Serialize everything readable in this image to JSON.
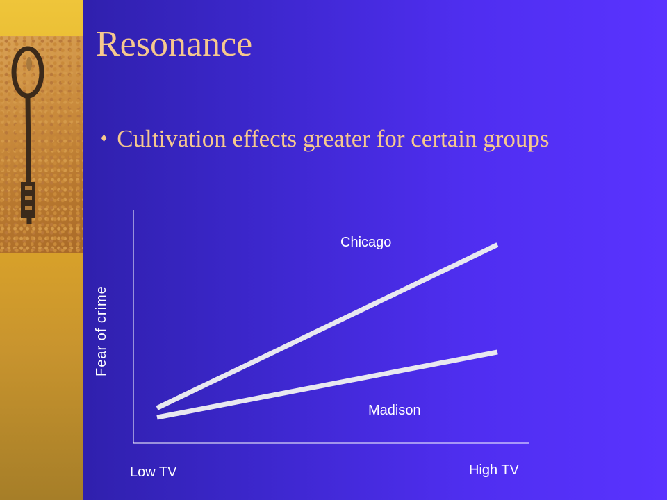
{
  "slide": {
    "title": "Resonance",
    "bullet": "Cultivation effects greater for certain groups",
    "bullet_glyph": "♦"
  },
  "colors": {
    "background": "#3a26c8",
    "title_text": "#f6c88e",
    "left_strip": "#e0b12a",
    "chart_line": "#e8e8f0",
    "axis": "#ffffff"
  },
  "chart_data": {
    "type": "line",
    "x": [
      "Low TV",
      "High TV"
    ],
    "series": [
      {
        "name": "Chicago",
        "values": [
          0.15,
          0.85
        ]
      },
      {
        "name": "Madison",
        "values": [
          0.11,
          0.39
        ]
      }
    ],
    "xlabel_low": "Low TV",
    "xlabel_high": "High TV",
    "ylabel": "Fear of crime",
    "grid": false,
    "legend": "inline labels"
  }
}
